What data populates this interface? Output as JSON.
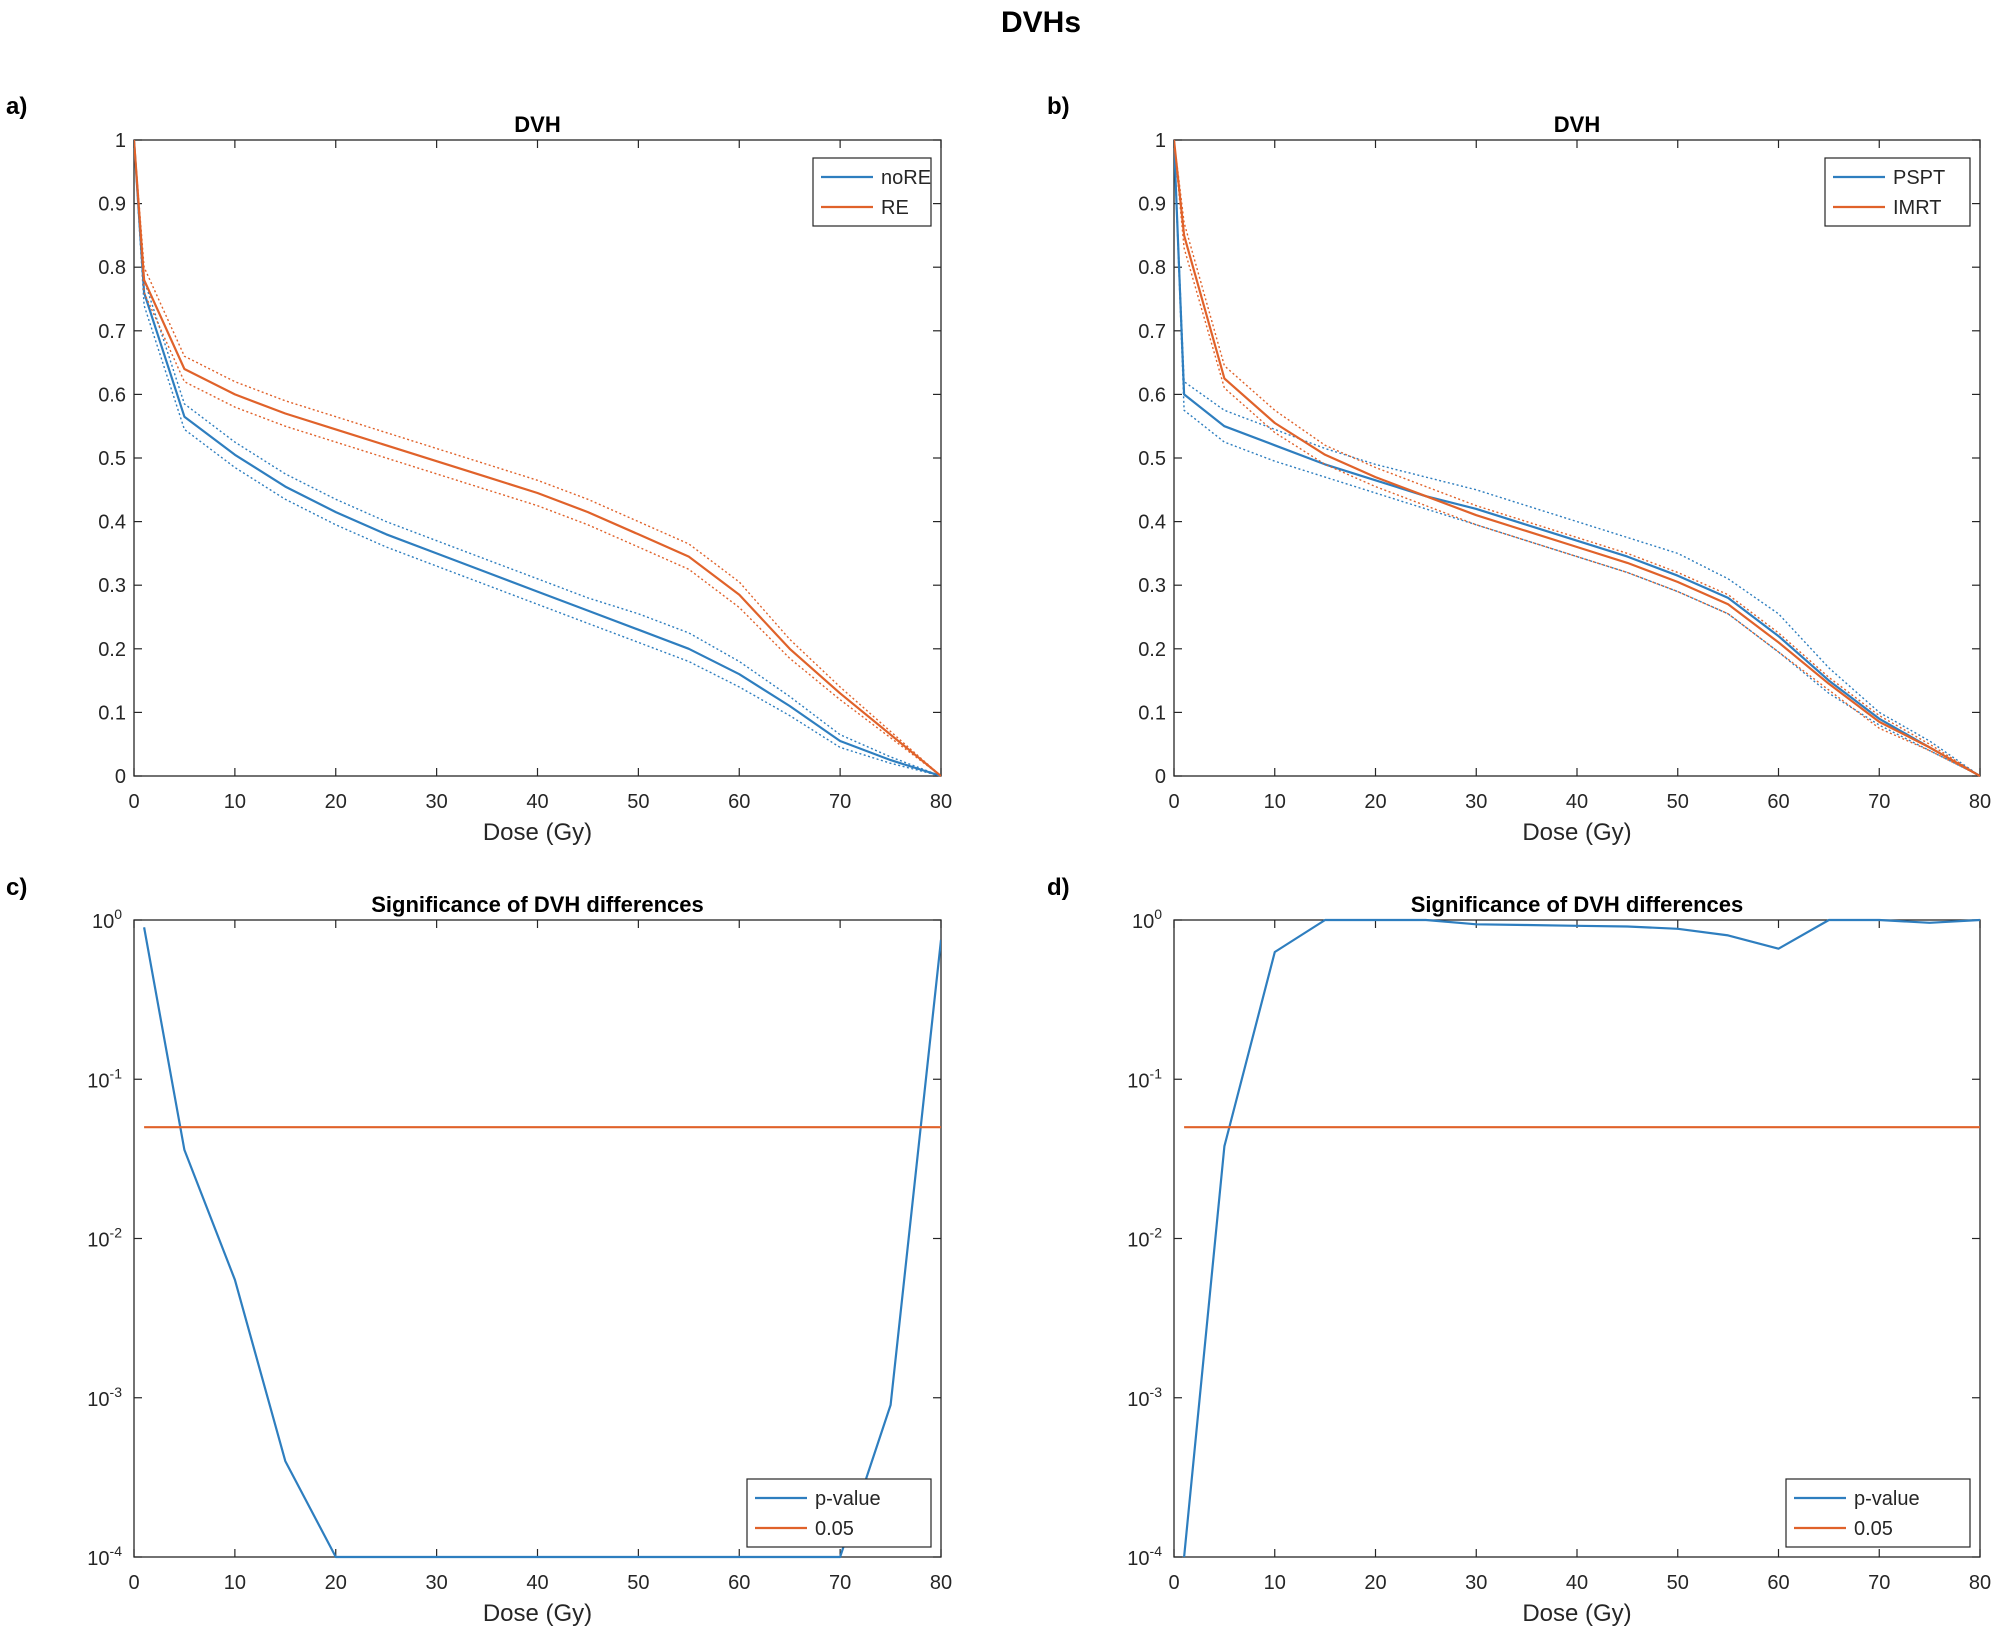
{
  "figure_title": "DVHs",
  "colors": {
    "blue": "#2E7EBF",
    "orange": "#E0622A",
    "axis": "#262626"
  },
  "chart_data": [
    {
      "panel": "a)",
      "type": "line",
      "title": "DVH",
      "xlabel": "Dose (Gy)",
      "ylabel": "",
      "xlim": [
        0,
        80
      ],
      "ylim": [
        0,
        1
      ],
      "yscale": "linear",
      "xticks": [
        0,
        10,
        20,
        30,
        40,
        50,
        60,
        70,
        80
      ],
      "yticks": [
        0,
        0.1,
        0.2,
        0.3,
        0.4,
        0.5,
        0.6,
        0.7,
        0.8,
        0.9,
        1
      ],
      "legend_position": "top-right",
      "x": [
        0,
        1,
        5,
        10,
        15,
        20,
        25,
        30,
        35,
        40,
        45,
        50,
        55,
        60,
        65,
        70,
        75,
        80
      ],
      "series": [
        {
          "name": "noRE",
          "color": "#2E7EBF",
          "show_in_legend": true,
          "values": [
            1,
            0.76,
            0.565,
            0.505,
            0.455,
            0.415,
            0.38,
            0.35,
            0.32,
            0.29,
            0.26,
            0.23,
            0.2,
            0.16,
            0.11,
            0.055,
            0.025,
            0
          ]
        },
        {
          "name": "noRE upper bound",
          "color": "#2E7EBF",
          "dashed": true,
          "show_in_legend": false,
          "values": [
            1,
            0.78,
            0.585,
            0.525,
            0.475,
            0.435,
            0.4,
            0.37,
            0.34,
            0.31,
            0.28,
            0.255,
            0.225,
            0.18,
            0.125,
            0.065,
            0.03,
            0
          ]
        },
        {
          "name": "noRE lower bound",
          "color": "#2E7EBF",
          "dashed": true,
          "show_in_legend": false,
          "values": [
            1,
            0.74,
            0.545,
            0.485,
            0.435,
            0.395,
            0.36,
            0.33,
            0.3,
            0.27,
            0.24,
            0.21,
            0.18,
            0.14,
            0.095,
            0.045,
            0.02,
            0
          ]
        },
        {
          "name": "RE",
          "color": "#E0622A",
          "show_in_legend": true,
          "values": [
            1,
            0.78,
            0.64,
            0.6,
            0.57,
            0.545,
            0.52,
            0.495,
            0.47,
            0.445,
            0.415,
            0.38,
            0.345,
            0.285,
            0.2,
            0.13,
            0.065,
            0
          ]
        },
        {
          "name": "RE upper bound",
          "color": "#E0622A",
          "dashed": true,
          "show_in_legend": false,
          "values": [
            1,
            0.8,
            0.66,
            0.62,
            0.59,
            0.565,
            0.54,
            0.515,
            0.49,
            0.465,
            0.435,
            0.4,
            0.365,
            0.305,
            0.215,
            0.14,
            0.07,
            0
          ]
        },
        {
          "name": "RE lower bound",
          "color": "#E0622A",
          "dashed": true,
          "show_in_legend": false,
          "values": [
            1,
            0.76,
            0.62,
            0.58,
            0.55,
            0.525,
            0.5,
            0.475,
            0.45,
            0.425,
            0.395,
            0.36,
            0.325,
            0.265,
            0.185,
            0.12,
            0.06,
            0
          ]
        }
      ]
    },
    {
      "panel": "b)",
      "type": "line",
      "title": "DVH",
      "xlabel": "Dose (Gy)",
      "ylabel": "",
      "xlim": [
        0,
        80
      ],
      "ylim": [
        0,
        1
      ],
      "yscale": "linear",
      "xticks": [
        0,
        10,
        20,
        30,
        40,
        50,
        60,
        70,
        80
      ],
      "yticks": [
        0,
        0.1,
        0.2,
        0.3,
        0.4,
        0.5,
        0.6,
        0.7,
        0.8,
        0.9,
        1
      ],
      "legend_position": "top-right",
      "x": [
        0,
        1,
        5,
        10,
        15,
        20,
        25,
        30,
        35,
        40,
        45,
        50,
        55,
        60,
        65,
        70,
        75,
        80
      ],
      "series": [
        {
          "name": "PSPT",
          "color": "#2E7EBF",
          "show_in_legend": true,
          "values": [
            1,
            0.6,
            0.55,
            0.52,
            0.49,
            0.465,
            0.44,
            0.42,
            0.395,
            0.37,
            0.345,
            0.315,
            0.28,
            0.22,
            0.15,
            0.09,
            0.045,
            0
          ]
        },
        {
          "name": "PSPT upper bound",
          "color": "#2E7EBF",
          "dashed": true,
          "show_in_legend": false,
          "values": [
            1,
            0.62,
            0.575,
            0.545,
            0.515,
            0.49,
            0.47,
            0.45,
            0.425,
            0.4,
            0.375,
            0.35,
            0.31,
            0.255,
            0.17,
            0.1,
            0.055,
            0
          ]
        },
        {
          "name": "PSPT lower bound",
          "color": "#2E7EBF",
          "dashed": true,
          "show_in_legend": false,
          "values": [
            1,
            0.575,
            0.525,
            0.495,
            0.47,
            0.445,
            0.42,
            0.395,
            0.37,
            0.345,
            0.32,
            0.29,
            0.255,
            0.195,
            0.13,
            0.08,
            0.04,
            0
          ]
        },
        {
          "name": "IMRT",
          "color": "#E0622A",
          "show_in_legend": true,
          "values": [
            1,
            0.85,
            0.625,
            0.555,
            0.505,
            0.47,
            0.44,
            0.41,
            0.385,
            0.36,
            0.335,
            0.305,
            0.27,
            0.21,
            0.145,
            0.085,
            0.045,
            0
          ]
        },
        {
          "name": "IMRT upper bound",
          "color": "#E0622A",
          "dashed": true,
          "show_in_legend": false,
          "values": [
            1,
            0.87,
            0.645,
            0.575,
            0.52,
            0.485,
            0.455,
            0.425,
            0.4,
            0.375,
            0.35,
            0.32,
            0.285,
            0.225,
            0.155,
            0.095,
            0.05,
            0
          ]
        },
        {
          "name": "IMRT lower bound",
          "color": "#E0622A",
          "dashed": true,
          "show_in_legend": false,
          "values": [
            1,
            0.83,
            0.61,
            0.54,
            0.49,
            0.455,
            0.425,
            0.395,
            0.37,
            0.345,
            0.32,
            0.29,
            0.255,
            0.195,
            0.135,
            0.075,
            0.04,
            0
          ]
        }
      ]
    },
    {
      "panel": "c)",
      "type": "line",
      "title": "Significance of DVH differences",
      "xlabel": "Dose (Gy)",
      "ylabel": "",
      "xlim": [
        0,
        80
      ],
      "ylim": [
        0.0001,
        1
      ],
      "yscale": "log",
      "xticks": [
        0,
        10,
        20,
        30,
        40,
        50,
        60,
        70,
        80
      ],
      "yticks": [
        0.0001,
        0.001,
        0.01,
        0.1,
        1
      ],
      "ytick_labels": [
        {
          "base": "10",
          "exp": "-4"
        },
        {
          "base": "10",
          "exp": "-3"
        },
        {
          "base": "10",
          "exp": "-2"
        },
        {
          "base": "10",
          "exp": "-1"
        },
        {
          "base": "10",
          "exp": "0"
        }
      ],
      "legend_position": "bottom-right",
      "series": [
        {
          "name": "p-value",
          "color": "#2E7EBF",
          "show_in_legend": true,
          "x": [
            1,
            5,
            10,
            15,
            20,
            25,
            30,
            35,
            40,
            45,
            50,
            55,
            60,
            65,
            70,
            75,
            80
          ],
          "values": [
            0.9,
            0.036,
            0.0055,
            0.0004,
            0.0001,
            0.0001,
            0.0001,
            0.0001,
            0.0001,
            0.0001,
            0.0001,
            0.0001,
            0.0001,
            0.0001,
            0.0001,
            0.0009,
            0.75
          ]
        },
        {
          "name": "0.05",
          "color": "#E0622A",
          "show_in_legend": true,
          "x": [
            1,
            80
          ],
          "values": [
            0.05,
            0.05
          ]
        }
      ]
    },
    {
      "panel": "d)",
      "type": "line",
      "title": "Significance of DVH differences",
      "xlabel": "Dose (Gy)",
      "ylabel": "",
      "xlim": [
        0,
        80
      ],
      "ylim": [
        0.0001,
        1
      ],
      "yscale": "log",
      "xticks": [
        0,
        10,
        20,
        30,
        40,
        50,
        60,
        70,
        80
      ],
      "yticks": [
        0.0001,
        0.001,
        0.01,
        0.1,
        1
      ],
      "ytick_labels": [
        {
          "base": "10",
          "exp": "-4"
        },
        {
          "base": "10",
          "exp": "-3"
        },
        {
          "base": "10",
          "exp": "-2"
        },
        {
          "base": "10",
          "exp": "-1"
        },
        {
          "base": "10",
          "exp": "0"
        }
      ],
      "legend_position": "bottom-right",
      "series": [
        {
          "name": "p-value",
          "color": "#2E7EBF",
          "show_in_legend": true,
          "x": [
            1,
            5,
            10,
            15,
            20,
            25,
            30,
            35,
            40,
            45,
            50,
            55,
            60,
            65,
            70,
            75,
            80
          ],
          "values": [
            0.0001,
            0.038,
            0.63,
            1,
            1,
            1,
            0.94,
            0.93,
            0.92,
            0.91,
            0.88,
            0.8,
            0.66,
            1,
            1,
            0.96,
            1
          ]
        },
        {
          "name": "0.05",
          "color": "#E0622A",
          "show_in_legend": true,
          "x": [
            1,
            80
          ],
          "values": [
            0.05,
            0.05
          ]
        }
      ]
    }
  ]
}
